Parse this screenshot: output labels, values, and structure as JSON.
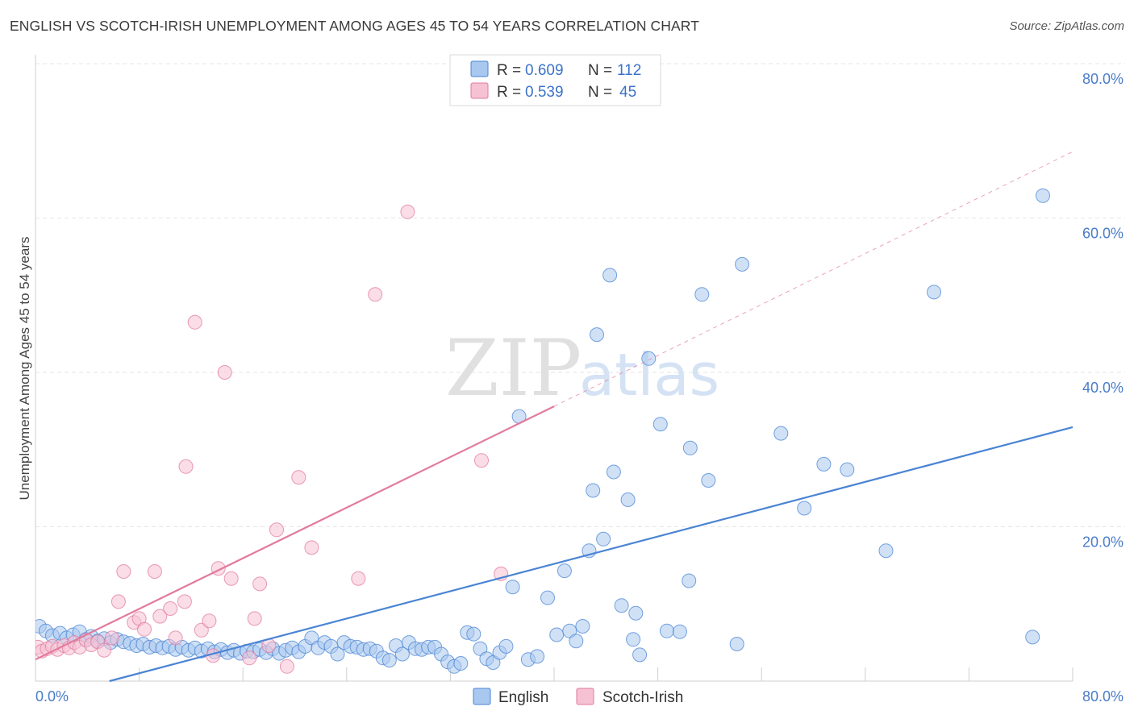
{
  "title": "ENGLISH VS SCOTCH-IRISH UNEMPLOYMENT AMONG AGES 45 TO 54 YEARS CORRELATION CHART",
  "source": "Source: ZipAtlas.com",
  "watermark": {
    "zip": "ZIP",
    "atlas": "atlas"
  },
  "chart_data": {
    "type": "scatter",
    "title": "ENGLISH VS SCOTCH-IRISH UNEMPLOYMENT AMONG AGES 45 TO 54 YEARS CORRELATION CHART",
    "xlabel": "",
    "ylabel": "Unemployment Among Ages 45 to 54 years",
    "xlim": [
      0,
      80
    ],
    "ylim": [
      0,
      80
    ],
    "x_tick_labels": [
      "0.0%",
      "80.0%"
    ],
    "y_ticks": [
      20,
      40,
      60,
      80
    ],
    "y_tick_labels": [
      "20.0%",
      "40.0%",
      "60.0%",
      "80.0%"
    ],
    "grid": true,
    "legend_position": "top-center",
    "legend": [
      {
        "name": "English",
        "r_label": "R =",
        "r": "0.609",
        "n_label": "N =",
        "n": "112"
      },
      {
        "name": "Scotch-Irish",
        "r_label": "R =",
        "r": "0.539",
        "n_label": "N =",
        "n": "45"
      }
    ],
    "series": [
      {
        "name": "English",
        "color": "#4a84d4",
        "fill": "#a9c8ef",
        "trendline": {
          "x": [
            5.7,
            80
          ],
          "y": [
            0,
            32.9
          ],
          "style": "solid"
        },
        "points": [
          [
            0.3,
            7.1
          ],
          [
            0.8,
            6.5
          ],
          [
            1.3,
            5.9
          ],
          [
            1.9,
            6.2
          ],
          [
            2.4,
            5.6
          ],
          [
            2.9,
            6.0
          ],
          [
            3.4,
            6.4
          ],
          [
            3.9,
            5.4
          ],
          [
            4.3,
            5.8
          ],
          [
            4.8,
            5.2
          ],
          [
            5.3,
            5.5
          ],
          [
            5.8,
            5.0
          ],
          [
            6.3,
            5.4
          ],
          [
            6.8,
            5.1
          ],
          [
            7.3,
            4.9
          ],
          [
            7.8,
            4.6
          ],
          [
            8.3,
            4.8
          ],
          [
            8.8,
            4.4
          ],
          [
            9.3,
            4.6
          ],
          [
            9.8,
            4.3
          ],
          [
            10.3,
            4.5
          ],
          [
            10.8,
            4.1
          ],
          [
            11.3,
            4.4
          ],
          [
            11.8,
            4.0
          ],
          [
            12.3,
            4.3
          ],
          [
            12.8,
            3.9
          ],
          [
            13.3,
            4.2
          ],
          [
            13.8,
            3.8
          ],
          [
            14.3,
            4.1
          ],
          [
            14.8,
            3.7
          ],
          [
            15.3,
            4.0
          ],
          [
            15.8,
            3.6
          ],
          [
            16.3,
            3.9
          ],
          [
            16.8,
            3.8
          ],
          [
            17.3,
            4.1
          ],
          [
            17.8,
            3.7
          ],
          [
            18.3,
            4.2
          ],
          [
            18.8,
            3.6
          ],
          [
            19.3,
            4.0
          ],
          [
            19.8,
            4.3
          ],
          [
            20.3,
            3.8
          ],
          [
            20.8,
            4.5
          ],
          [
            21.3,
            5.6
          ],
          [
            21.8,
            4.3
          ],
          [
            22.3,
            5.0
          ],
          [
            22.8,
            4.5
          ],
          [
            23.3,
            3.5
          ],
          [
            23.8,
            5.0
          ],
          [
            24.3,
            4.5
          ],
          [
            24.8,
            4.4
          ],
          [
            25.3,
            4.1
          ],
          [
            25.8,
            4.2
          ],
          [
            26.3,
            3.9
          ],
          [
            26.8,
            3.0
          ],
          [
            27.3,
            2.7
          ],
          [
            27.8,
            4.6
          ],
          [
            28.3,
            3.5
          ],
          [
            28.8,
            5.0
          ],
          [
            29.3,
            4.2
          ],
          [
            29.8,
            4.1
          ],
          [
            30.3,
            4.4
          ],
          [
            30.8,
            4.4
          ],
          [
            31.3,
            3.5
          ],
          [
            31.8,
            2.5
          ],
          [
            32.3,
            1.9
          ],
          [
            32.8,
            2.3
          ],
          [
            33.3,
            6.3
          ],
          [
            33.8,
            6.1
          ],
          [
            34.3,
            4.2
          ],
          [
            34.8,
            2.9
          ],
          [
            35.3,
            2.4
          ],
          [
            35.8,
            3.7
          ],
          [
            36.3,
            4.5
          ],
          [
            36.8,
            12.2
          ],
          [
            37.3,
            34.3
          ],
          [
            38.0,
            2.8
          ],
          [
            38.7,
            3.2
          ],
          [
            39.5,
            10.8
          ],
          [
            40.2,
            6.0
          ],
          [
            40.8,
            14.3
          ],
          [
            41.2,
            6.5
          ],
          [
            41.7,
            5.2
          ],
          [
            42.2,
            7.1
          ],
          [
            42.7,
            16.9
          ],
          [
            43.0,
            24.7
          ],
          [
            43.3,
            44.9
          ],
          [
            43.8,
            18.4
          ],
          [
            44.3,
            52.6
          ],
          [
            44.6,
            27.1
          ],
          [
            45.2,
            9.8
          ],
          [
            45.7,
            23.5
          ],
          [
            46.1,
            5.4
          ],
          [
            46.3,
            8.8
          ],
          [
            46.6,
            3.4
          ],
          [
            47.3,
            41.8
          ],
          [
            48.2,
            33.3
          ],
          [
            48.7,
            6.5
          ],
          [
            49.7,
            6.4
          ],
          [
            50.4,
            13.0
          ],
          [
            50.5,
            30.2
          ],
          [
            51.4,
            50.1
          ],
          [
            51.9,
            26.0
          ],
          [
            54.1,
            4.8
          ],
          [
            54.5,
            54.0
          ],
          [
            57.5,
            32.1
          ],
          [
            59.3,
            22.4
          ],
          [
            60.8,
            28.1
          ],
          [
            62.6,
            27.4
          ],
          [
            65.6,
            16.9
          ],
          [
            69.3,
            50.4
          ],
          [
            76.9,
            5.7
          ],
          [
            77.7,
            62.9
          ]
        ]
      },
      {
        "name": "Scotch-Irish",
        "color": "#e27a9e",
        "fill": "#f6c1d3",
        "trendline": {
          "x": [
            0,
            40
          ],
          "y": [
            2.8,
            35.6
          ],
          "style": "solid",
          "extension": {
            "x": [
              40,
              80
            ],
            "y": [
              35.6,
              68.6
            ],
            "style": "dashed"
          }
        },
        "points": [
          [
            0.2,
            4.4
          ],
          [
            0.5,
            3.9
          ],
          [
            0.9,
            4.2
          ],
          [
            1.3,
            4.5
          ],
          [
            1.7,
            4.1
          ],
          [
            2.2,
            4.6
          ],
          [
            2.6,
            4.3
          ],
          [
            3.0,
            5.0
          ],
          [
            3.4,
            4.4
          ],
          [
            3.9,
            5.3
          ],
          [
            4.3,
            4.7
          ],
          [
            4.8,
            5.1
          ],
          [
            5.3,
            4.0
          ],
          [
            5.9,
            5.6
          ],
          [
            6.4,
            10.3
          ],
          [
            6.8,
            14.2
          ],
          [
            7.6,
            7.6
          ],
          [
            8.0,
            8.1
          ],
          [
            8.4,
            6.7
          ],
          [
            9.2,
            14.2
          ],
          [
            9.6,
            8.4
          ],
          [
            10.4,
            9.4
          ],
          [
            10.8,
            5.6
          ],
          [
            11.5,
            10.3
          ],
          [
            11.6,
            27.8
          ],
          [
            12.3,
            46.5
          ],
          [
            12.8,
            6.6
          ],
          [
            13.4,
            7.8
          ],
          [
            13.7,
            3.3
          ],
          [
            14.1,
            14.6
          ],
          [
            14.6,
            40.0
          ],
          [
            15.1,
            13.3
          ],
          [
            16.5,
            3.0
          ],
          [
            16.9,
            8.1
          ],
          [
            17.3,
            12.6
          ],
          [
            18.0,
            4.6
          ],
          [
            18.6,
            19.6
          ],
          [
            19.4,
            1.9
          ],
          [
            20.3,
            26.4
          ],
          [
            21.3,
            17.3
          ],
          [
            24.9,
            13.3
          ],
          [
            26.2,
            50.1
          ],
          [
            28.7,
            60.8
          ],
          [
            34.4,
            28.6
          ],
          [
            35.9,
            13.9
          ]
        ]
      }
    ]
  }
}
